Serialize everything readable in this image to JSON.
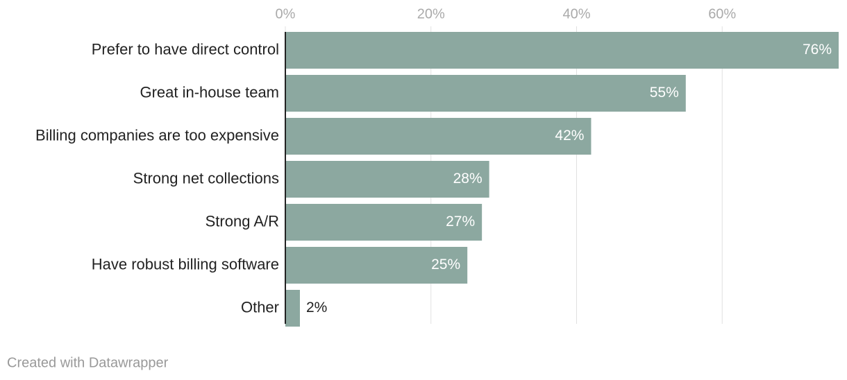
{
  "chart_data": {
    "type": "bar",
    "orientation": "horizontal",
    "categories": [
      "Prefer to have direct control",
      "Great in-house team",
      "Billing companies are too expensive",
      "Strong net collections",
      "Strong A/R",
      "Have robust billing software",
      "Other"
    ],
    "values": [
      76,
      55,
      42,
      28,
      27,
      25,
      2
    ],
    "value_labels": [
      "76%",
      "55%",
      "42%",
      "28%",
      "27%",
      "25%",
      "2%"
    ],
    "color": "#8ca8a0",
    "xlim": [
      0,
      76
    ],
    "xticks": [
      {
        "value": 0,
        "label": "0%"
      },
      {
        "value": 20,
        "label": "20%"
      },
      {
        "value": 40,
        "label": "40%"
      },
      {
        "value": 60,
        "label": "60%"
      }
    ],
    "grid": true,
    "footer": "Created with Datawrapper"
  }
}
